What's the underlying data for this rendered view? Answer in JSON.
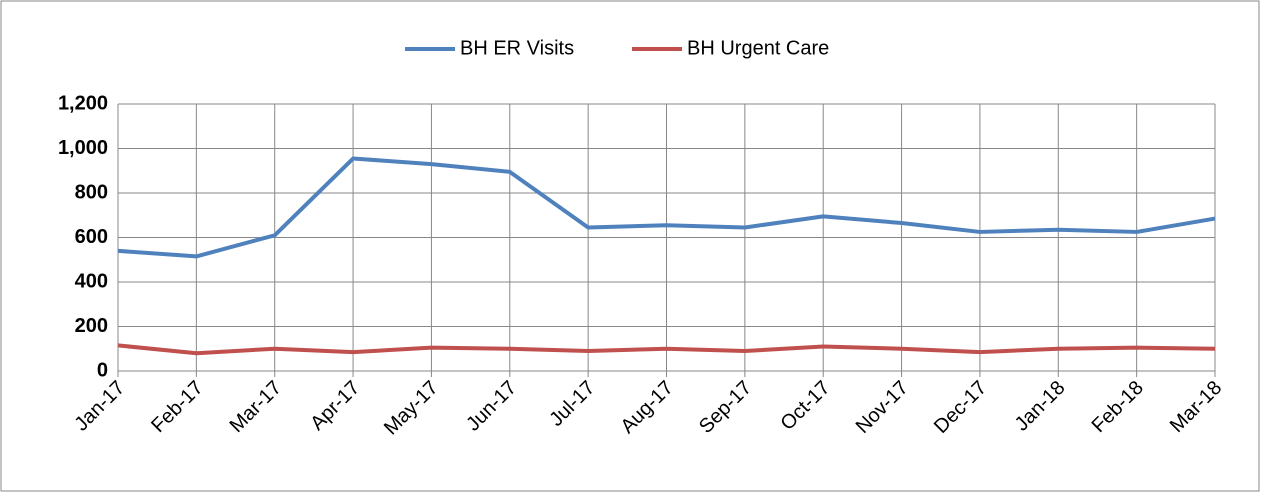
{
  "chart_data": {
    "type": "line",
    "categories": [
      "Jan-17",
      "Feb-17",
      "Mar-17",
      "Apr-17",
      "May-17",
      "Jun-17",
      "Jul-17",
      "Aug-17",
      "Sep-17",
      "Oct-17",
      "Nov-17",
      "Dec-17",
      "Jan-18",
      "Feb-18",
      "Mar-18"
    ],
    "series": [
      {
        "name": "BH ER Visits",
        "color": "#4f81bd",
        "values": [
          540,
          515,
          610,
          955,
          930,
          895,
          645,
          655,
          645,
          695,
          665,
          625,
          635,
          625,
          685
        ]
      },
      {
        "name": "BH Urgent Care",
        "color": "#c0504d",
        "values": [
          115,
          80,
          100,
          85,
          105,
          100,
          90,
          100,
          90,
          110,
          100,
          85,
          100,
          105,
          100
        ]
      }
    ],
    "ylim": [
      0,
      1200
    ],
    "yticks": [
      0,
      200,
      400,
      600,
      800,
      {
        "value": 1000,
        "label": "1,000"
      },
      {
        "value": 1200,
        "label": "1,200"
      }
    ],
    "grid": true,
    "legend": "top"
  }
}
